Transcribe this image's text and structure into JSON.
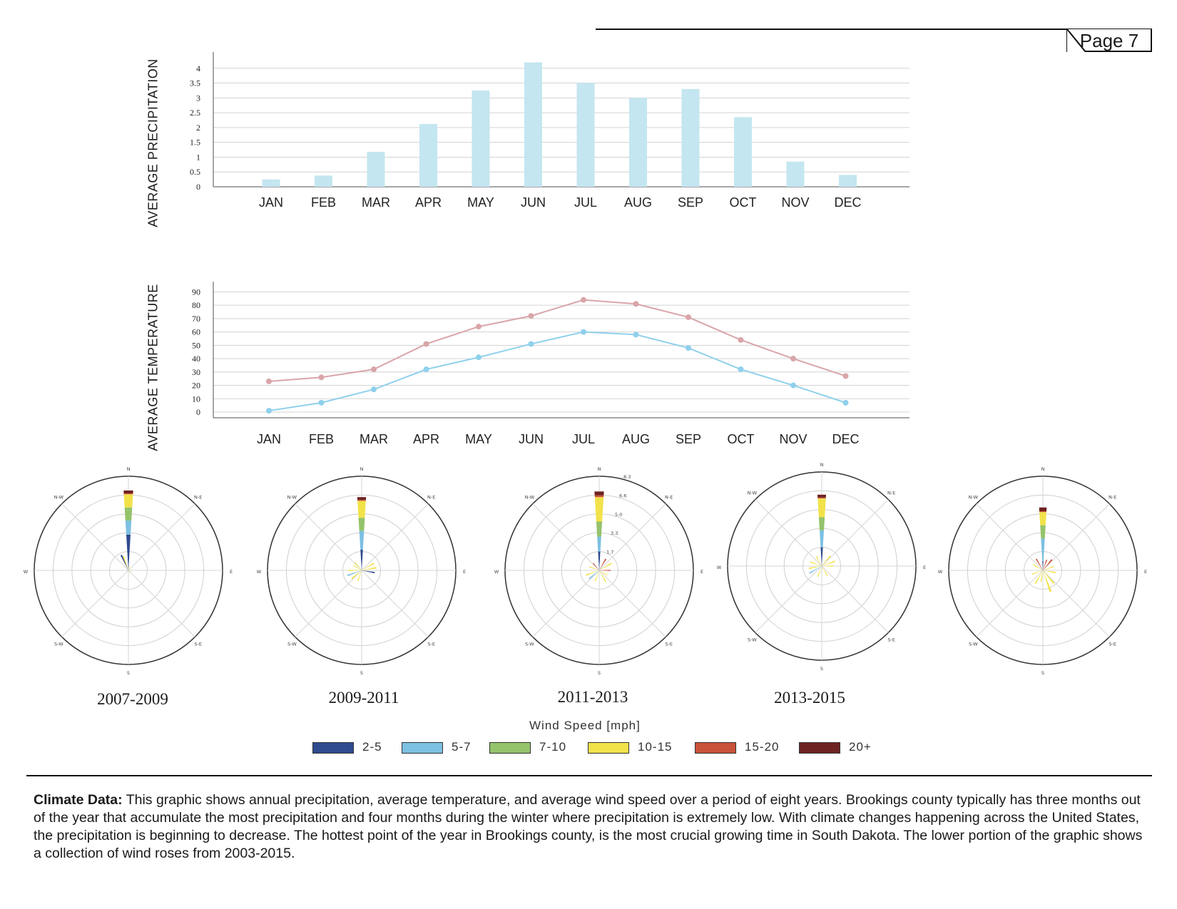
{
  "page": {
    "label": "Page 7"
  },
  "chart_data": [
    {
      "type": "bar",
      "ylabel": "AVERAGE PRECIPITATION",
      "categories": [
        "JAN",
        "FEB",
        "MAR",
        "APR",
        "MAY",
        "JUN",
        "JUL",
        "AUG",
        "SEP",
        "OCT",
        "NOV",
        "DEC"
      ],
      "values": [
        0.25,
        0.38,
        1.18,
        2.12,
        3.25,
        4.2,
        3.5,
        3.0,
        3.3,
        2.35,
        0.85,
        0.4
      ],
      "yticks": [
        "0",
        "0.5",
        "1",
        "1.5",
        "2",
        "2.5",
        "3",
        "3.5",
        "4"
      ],
      "ylim": [
        0,
        4.5
      ],
      "color": "#c4e6f0",
      "grid": true
    },
    {
      "type": "line",
      "ylabel": "AVERAGE TEMPERATURE",
      "categories": [
        "JAN",
        "FEB",
        "MAR",
        "APR",
        "MAY",
        "JUN",
        "JUL",
        "AUG",
        "SEP",
        "OCT",
        "NOV",
        "DEC"
      ],
      "series": [
        {
          "values": [
            23,
            26,
            32,
            51,
            64,
            72,
            84,
            81,
            71,
            54,
            40,
            27
          ],
          "color": "#d9a5a9"
        },
        {
          "values": [
            1,
            7,
            17,
            32,
            41,
            51,
            60,
            58,
            48,
            32,
            20,
            7
          ],
          "color": "#8fd0ec"
        }
      ],
      "yticks": [
        "0",
        "10",
        "20",
        "30",
        "40",
        "50",
        "60",
        "70",
        "80",
        "90"
      ],
      "ylim": [
        0,
        95
      ],
      "grid": true
    }
  ],
  "wind_roses": {
    "directions": {
      "n": "N",
      "ne": "N-E",
      "e": "E",
      "se": "S-E",
      "s": "S",
      "sw": "S-W",
      "w": "W",
      "nw": "N-W"
    },
    "ring_labels": [
      "1.7",
      "3.3",
      "5.0",
      "6.6",
      "8.3"
    ],
    "items": [
      {
        "caption": "2007-2009"
      },
      {
        "caption": "2009-2011"
      },
      {
        "caption": "2011-2013"
      },
      {
        "caption": "2013-2015"
      },
      {
        "caption": ""
      }
    ]
  },
  "legend": {
    "title": "Wind Speed [mph]",
    "items": [
      {
        "label": "2-5",
        "color": "#2f4a8e"
      },
      {
        "label": "5-7",
        "color": "#7cc0e2"
      },
      {
        "label": "7-10",
        "color": "#95c36c"
      },
      {
        "label": "10-15",
        "color": "#f2e24a"
      },
      {
        "label": "15-20",
        "color": "#c9523a"
      },
      {
        "label": "20+",
        "color": "#6e2222"
      }
    ]
  },
  "caption": {
    "lead": "Climate Data:",
    "text": " This graphic shows annual precipitation, average temperature, and average wind speed over a period of eight years. Brookings county typically has three months out of the year that accumulate the most precipitation and four months during the winter where precipitation is extremely low. With climate changes happening across the United States, the precipitation is beginning to decrease. The hottest point of the year in Brookings county, is the most crucial growing time in South Dakota. The lower portion of the graphic shows a collection of wind roses from 2003-2015."
  }
}
